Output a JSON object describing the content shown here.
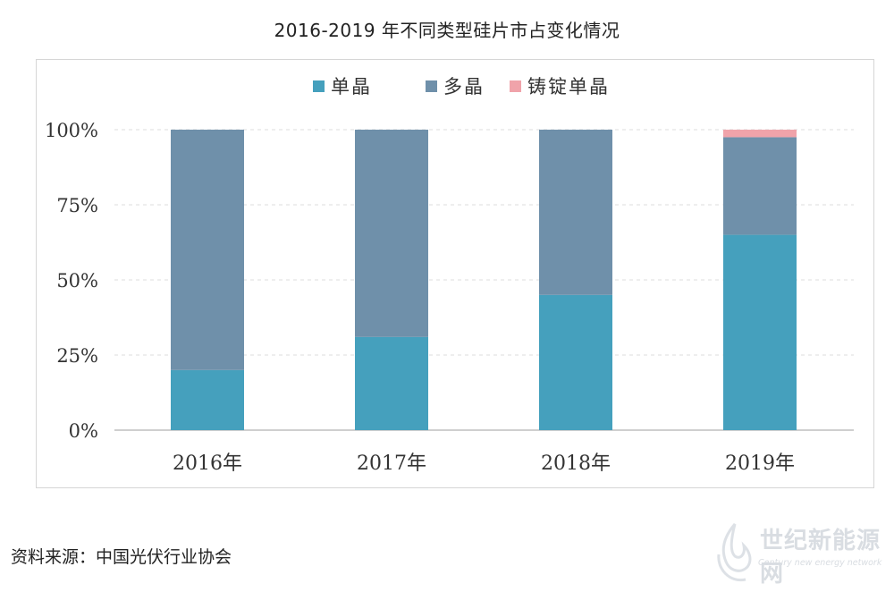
{
  "colors": {
    "mono": "#45a0bd",
    "multi": "#6f90aa",
    "cast_mono": "#f0a3aa",
    "grid": "#dcdcdc",
    "axis_text": "#333333"
  },
  "chart_data": {
    "type": "bar",
    "stacked": true,
    "title": "2016-2019 年不同类型硅片市占变化情况",
    "categories": [
      "2016年",
      "2017年",
      "2018年",
      "2019年"
    ],
    "series": [
      {
        "name": "单晶",
        "values": [
          20,
          31,
          45,
          65
        ]
      },
      {
        "name": "多晶",
        "values": [
          80,
          69,
          55,
          32.5
        ]
      },
      {
        "name": "铸锭单晶",
        "values": [
          0,
          0,
          0,
          2.5
        ]
      }
    ],
    "yticks": [
      "0%",
      "25%",
      "50%",
      "75%",
      "100%"
    ],
    "ylim": [
      0,
      100
    ],
    "grid": true,
    "legend_position": "top-center"
  },
  "source_note": "资料来源：中国光伏行业协会",
  "watermark": {
    "name": "世纪新能源网",
    "subtitle": "Century new energy network",
    "icon": "flame-logo-icon"
  }
}
